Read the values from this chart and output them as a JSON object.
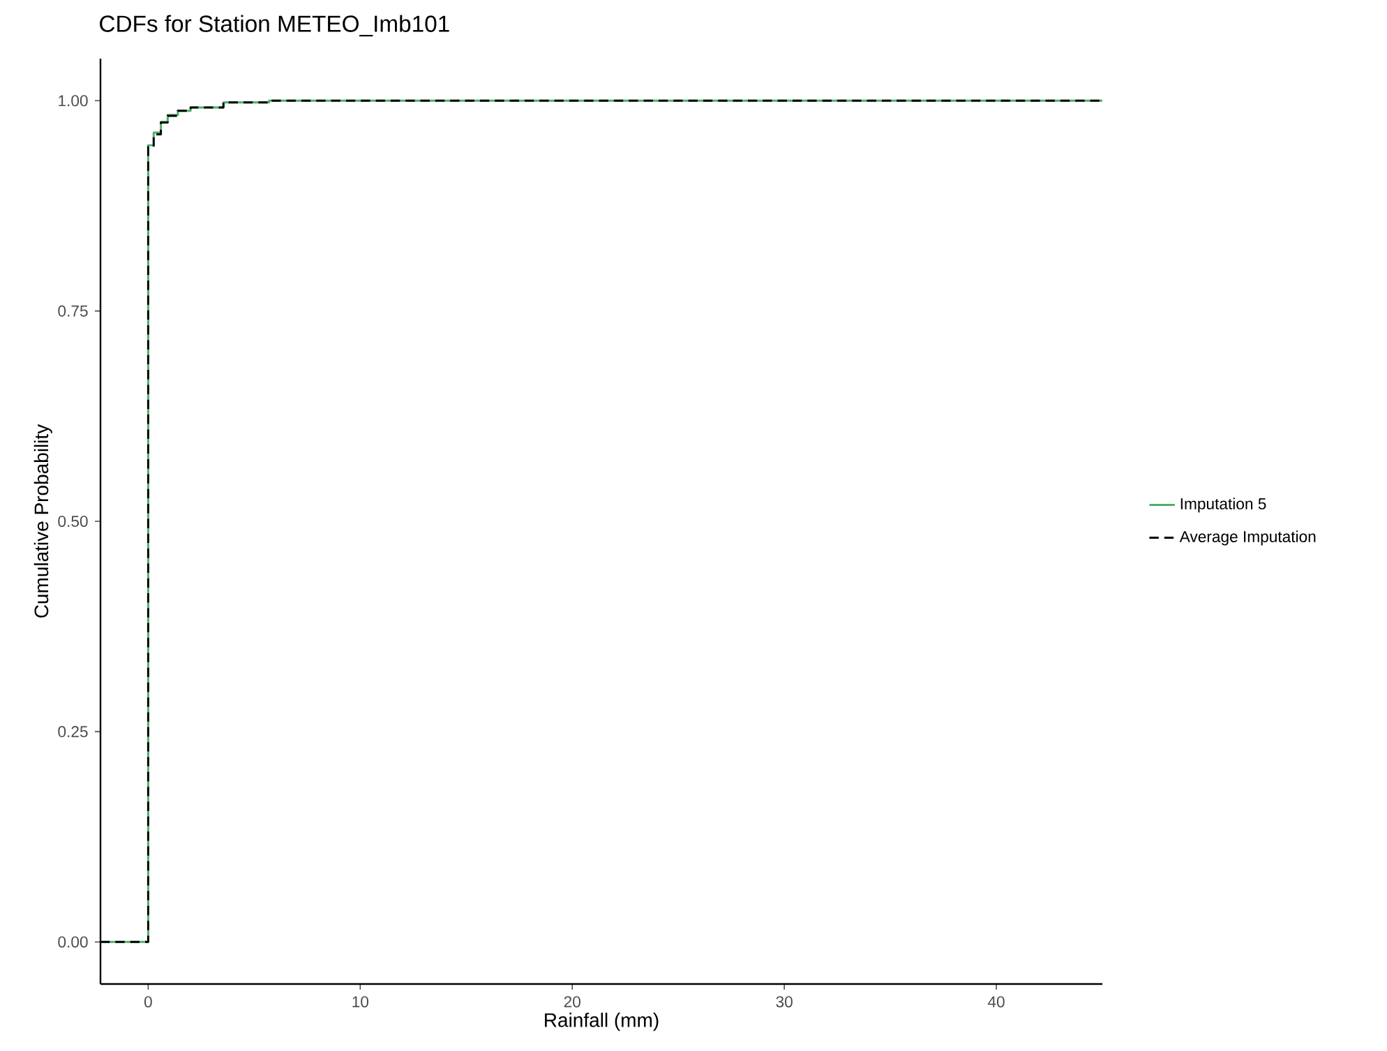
{
  "chart_data": {
    "type": "step",
    "title": "CDFs for Station METEO_Imb101",
    "xlabel": "Rainfall (mm)",
    "ylabel": "Cumulative Probability",
    "xlim": [
      -2.25,
      45
    ],
    "ylim": [
      -0.05,
      1.05
    ],
    "xticks": [
      0,
      10,
      20,
      30,
      40
    ],
    "yticks": [
      {
        "value": 0,
        "label": "0.00"
      },
      {
        "value": 0.25,
        "label": "0.25"
      },
      {
        "value": 0.5,
        "label": "0.50"
      },
      {
        "value": 0.75,
        "label": "0.75"
      },
      {
        "value": 1,
        "label": "1.00"
      }
    ],
    "grid": false,
    "legend": "right",
    "marker": "none",
    "series": [
      {
        "name": "Imputation 5",
        "color": "#4daf6a",
        "line_style": "solid",
        "x": [
          -2.25,
          0,
          0,
          0.26,
          0.6,
          0.92,
          1.4,
          2.0,
          3.55,
          5.7,
          45
        ],
        "values": [
          0,
          0,
          0.947,
          0.962,
          0.975,
          0.983,
          0.988,
          0.992,
          0.998,
          1.0,
          1.0
        ]
      },
      {
        "name": "Average Imputation",
        "color": "#000000",
        "line_style": "dashed",
        "x": [
          -2.25,
          0,
          0,
          0.26,
          0.6,
          0.92,
          1.4,
          2.0,
          3.55,
          5.7,
          45
        ],
        "values": [
          0,
          0,
          0.945,
          0.96,
          0.974,
          0.982,
          0.988,
          0.992,
          0.998,
          1.0,
          1.0
        ]
      }
    ]
  }
}
